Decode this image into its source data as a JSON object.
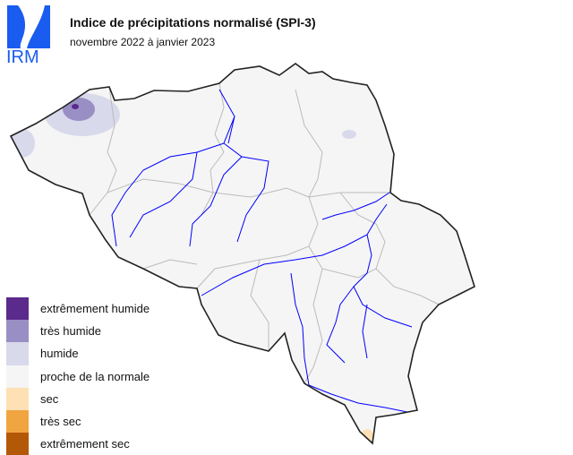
{
  "logo": {
    "text": "IRM",
    "color": "#1a5cf0"
  },
  "header": {
    "title": "Indice de précipitations normalisé (SPI-3)",
    "subtitle": "novembre 2022 à janvier 2023"
  },
  "map": {
    "region": "Belgique",
    "base_color": "#f5f5f5",
    "border_color": "#222222",
    "province_color": "#bbbbbb",
    "river_color": "#0000ff"
  },
  "legend": {
    "items": [
      {
        "label": "extrêmement humide",
        "color": "#5a2a8c"
      },
      {
        "label": "très humide",
        "color": "#9a8fc4"
      },
      {
        "label": "humide",
        "color": "#d9d9ec"
      },
      {
        "label": "proche de la normale",
        "color": "#f5f5f5"
      },
      {
        "label": "sec",
        "color": "#fde0b3"
      },
      {
        "label": "très sec",
        "color": "#f0a541"
      },
      {
        "label": "extrêmement sec",
        "color": "#b35806"
      }
    ]
  }
}
